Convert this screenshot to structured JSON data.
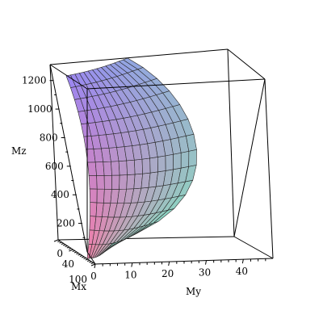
{
  "chart_data": {
    "type": "surface3d",
    "axes": {
      "x": {
        "label": "My",
        "ticks": [
          0,
          10,
          20,
          30,
          40
        ],
        "tick_labels": [
          "0",
          "10",
          "20",
          "30",
          "40"
        ],
        "range": [
          0,
          48
        ]
      },
      "y": {
        "label": "Mx",
        "ticks": [
          0,
          40,
          100
        ],
        "tick_labels": [
          "0",
          "40",
          "100"
        ],
        "range": [
          0,
          100
        ]
      },
      "z": {
        "label": "Mz",
        "ticks": [
          200,
          400,
          600,
          800,
          1000,
          1200
        ],
        "tick_labels": [
          "200",
          "400",
          "600",
          "800",
          "1000",
          "1200"
        ],
        "range": [
          0,
          1300
        ]
      }
    },
    "surface": {
      "grid_resolution": [
        14,
        14
      ],
      "colormap": [
        "#f47fa6",
        "#9a86f2",
        "#7fe0c4"
      ]
    },
    "frame": "boxed"
  }
}
